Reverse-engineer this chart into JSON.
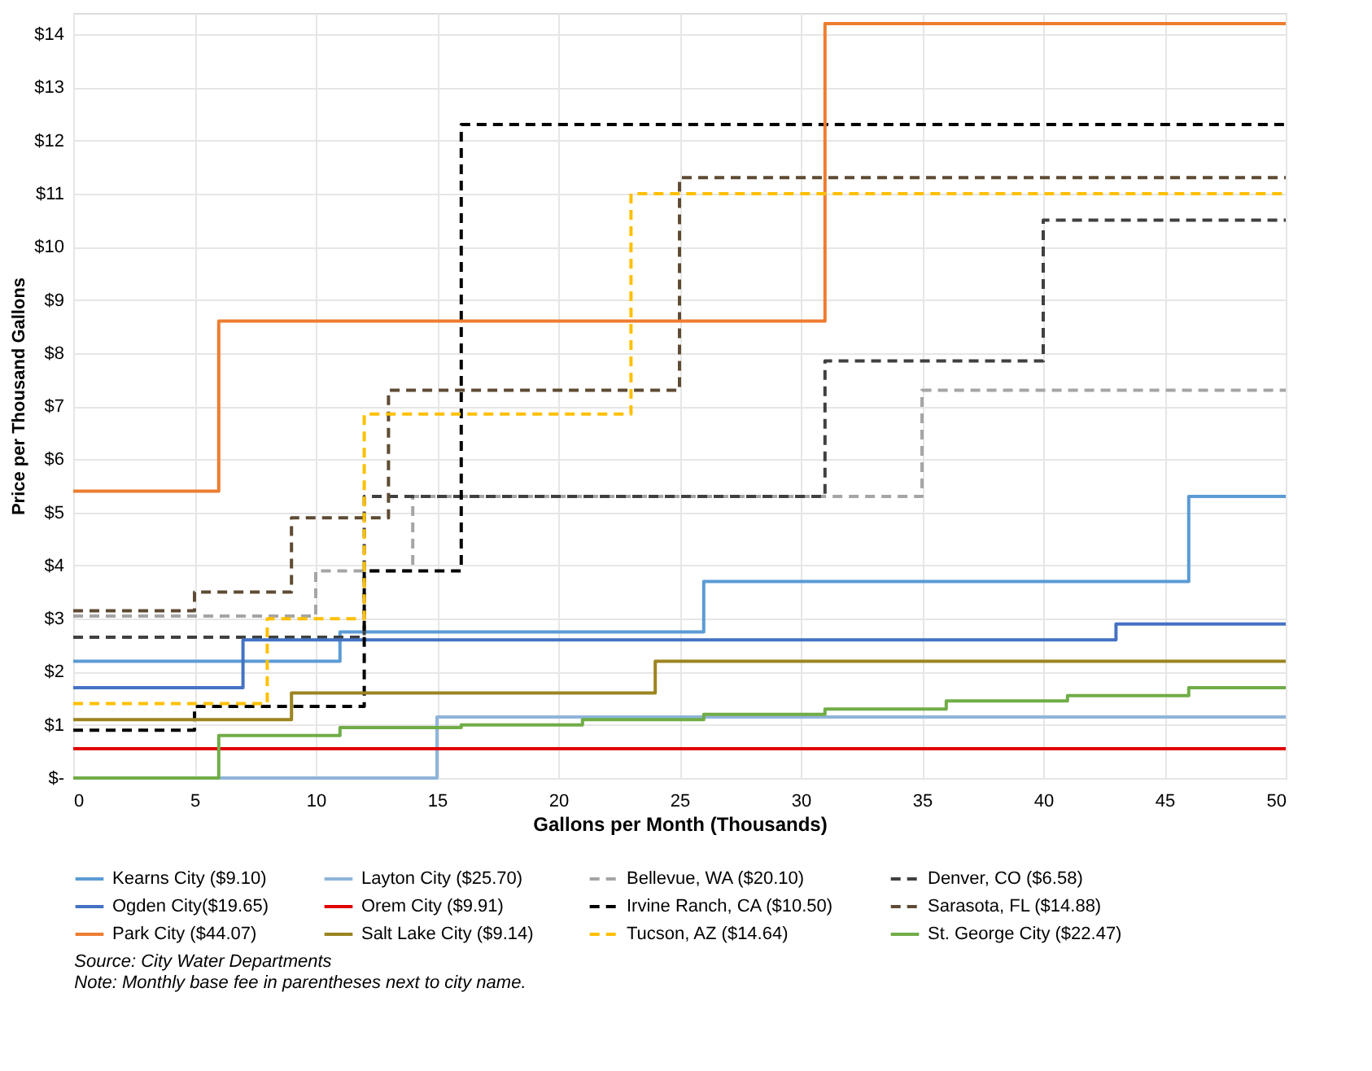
{
  "chart_data": {
    "type": "step",
    "xlabel": "Gallons per Month (Thousands)",
    "ylabel": "Price per Thousand Gallons",
    "xlim": [
      0,
      50
    ],
    "xticks": [
      0,
      5,
      10,
      15,
      20,
      25,
      30,
      35,
      40,
      45,
      50
    ],
    "ylim": [
      0,
      14.4
    ],
    "yticks": [
      {
        "value": 0,
        "label": "$-"
      },
      {
        "value": 1,
        "label": "$1"
      },
      {
        "value": 2,
        "label": "$2"
      },
      {
        "value": 3,
        "label": "$3"
      },
      {
        "value": 4,
        "label": "$4"
      },
      {
        "value": 5,
        "label": "$5"
      },
      {
        "value": 6,
        "label": "$6"
      },
      {
        "value": 7,
        "label": "$7"
      },
      {
        "value": 8,
        "label": "$8"
      },
      {
        "value": 9,
        "label": "$9"
      },
      {
        "value": 10,
        "label": "$10"
      },
      {
        "value": 11,
        "label": "$11"
      },
      {
        "value": 12,
        "label": "$12"
      },
      {
        "value": 13,
        "label": "$13"
      },
      {
        "value": 14,
        "label": "$14"
      }
    ],
    "grid": true,
    "legend": "bottom",
    "marker": "none",
    "series": [
      {
        "name": "Kearns City ($9.10)",
        "color": "#5b9bd5",
        "line_style": "solid",
        "x": [
          0,
          11,
          26,
          46,
          50
        ],
        "values": [
          2.2,
          2.75,
          3.7,
          5.3,
          5.3
        ]
      },
      {
        "name": "Layton City ($25.70)",
        "color": "#8fb4d9",
        "line_style": "solid",
        "x": [
          0,
          15,
          50
        ],
        "values": [
          0,
          1.15,
          1.15
        ]
      },
      {
        "name": "Bellevue, WA ($20.10)",
        "color": "#a5a5a5",
        "line_style": "dashed",
        "x": [
          0,
          10,
          14,
          35,
          50
        ],
        "values": [
          3.05,
          3.9,
          5.3,
          7.3,
          7.3
        ]
      },
      {
        "name": "Denver, CO ($6.58)",
        "color": "#404040",
        "line_style": "dashed",
        "x": [
          0,
          12,
          31,
          40,
          50
        ],
        "values": [
          2.65,
          5.3,
          7.85,
          10.5,
          10.5
        ]
      },
      {
        "name": "Ogden City($19.65)",
        "color": "#4472c4",
        "line_style": "solid",
        "x": [
          0,
          7,
          43,
          50
        ],
        "values": [
          1.7,
          2.6,
          2.9,
          2.9
        ]
      },
      {
        "name": "Orem City ($9.91)",
        "color": "#e00000",
        "line_style": "solid",
        "x": [
          0,
          50
        ],
        "values": [
          0.55,
          0.55
        ]
      },
      {
        "name": "Irvine Ranch, CA ($10.50)",
        "color": "#000000",
        "line_style": "dashed",
        "x": [
          0,
          5,
          12,
          16,
          50
        ],
        "values": [
          0.9,
          1.35,
          3.9,
          12.3,
          12.3
        ]
      },
      {
        "name": "Sarasota, FL ($14.88)",
        "color": "#5e4b33",
        "line_style": "dashed",
        "x": [
          0,
          5,
          9,
          13,
          25,
          50
        ],
        "values": [
          3.15,
          3.5,
          4.9,
          7.3,
          11.3,
          11.3
        ]
      },
      {
        "name": "Park City ($44.07)",
        "color": "#ed7d31",
        "line_style": "solid",
        "x": [
          0,
          6,
          31,
          50
        ],
        "values": [
          5.4,
          8.6,
          14.2,
          14.2
        ]
      },
      {
        "name": "Salt Lake City ($9.14)",
        "color": "#9c8420",
        "line_style": "solid",
        "x": [
          0,
          9,
          24,
          50
        ],
        "values": [
          1.1,
          1.6,
          2.2,
          2.2
        ]
      },
      {
        "name": "Tucson, AZ ($14.64)",
        "color": "#ffc000",
        "line_style": "dashed",
        "x": [
          0,
          8,
          12,
          23,
          50
        ],
        "values": [
          1.4,
          3.0,
          6.85,
          11.0,
          11.0
        ]
      },
      {
        "name": "St. George City ($22.47)",
        "color": "#70ad47",
        "line_style": "solid",
        "x": [
          0,
          6,
          11,
          16,
          21,
          26,
          31,
          36,
          41,
          46,
          50
        ],
        "values": [
          0,
          0.8,
          0.95,
          1.0,
          1.1,
          1.2,
          1.3,
          1.45,
          1.55,
          1.7,
          1.7
        ]
      }
    ],
    "annotations": [
      "Source: City Water Departments",
      "Note: Monthly base fee in parentheses next to city name."
    ]
  }
}
